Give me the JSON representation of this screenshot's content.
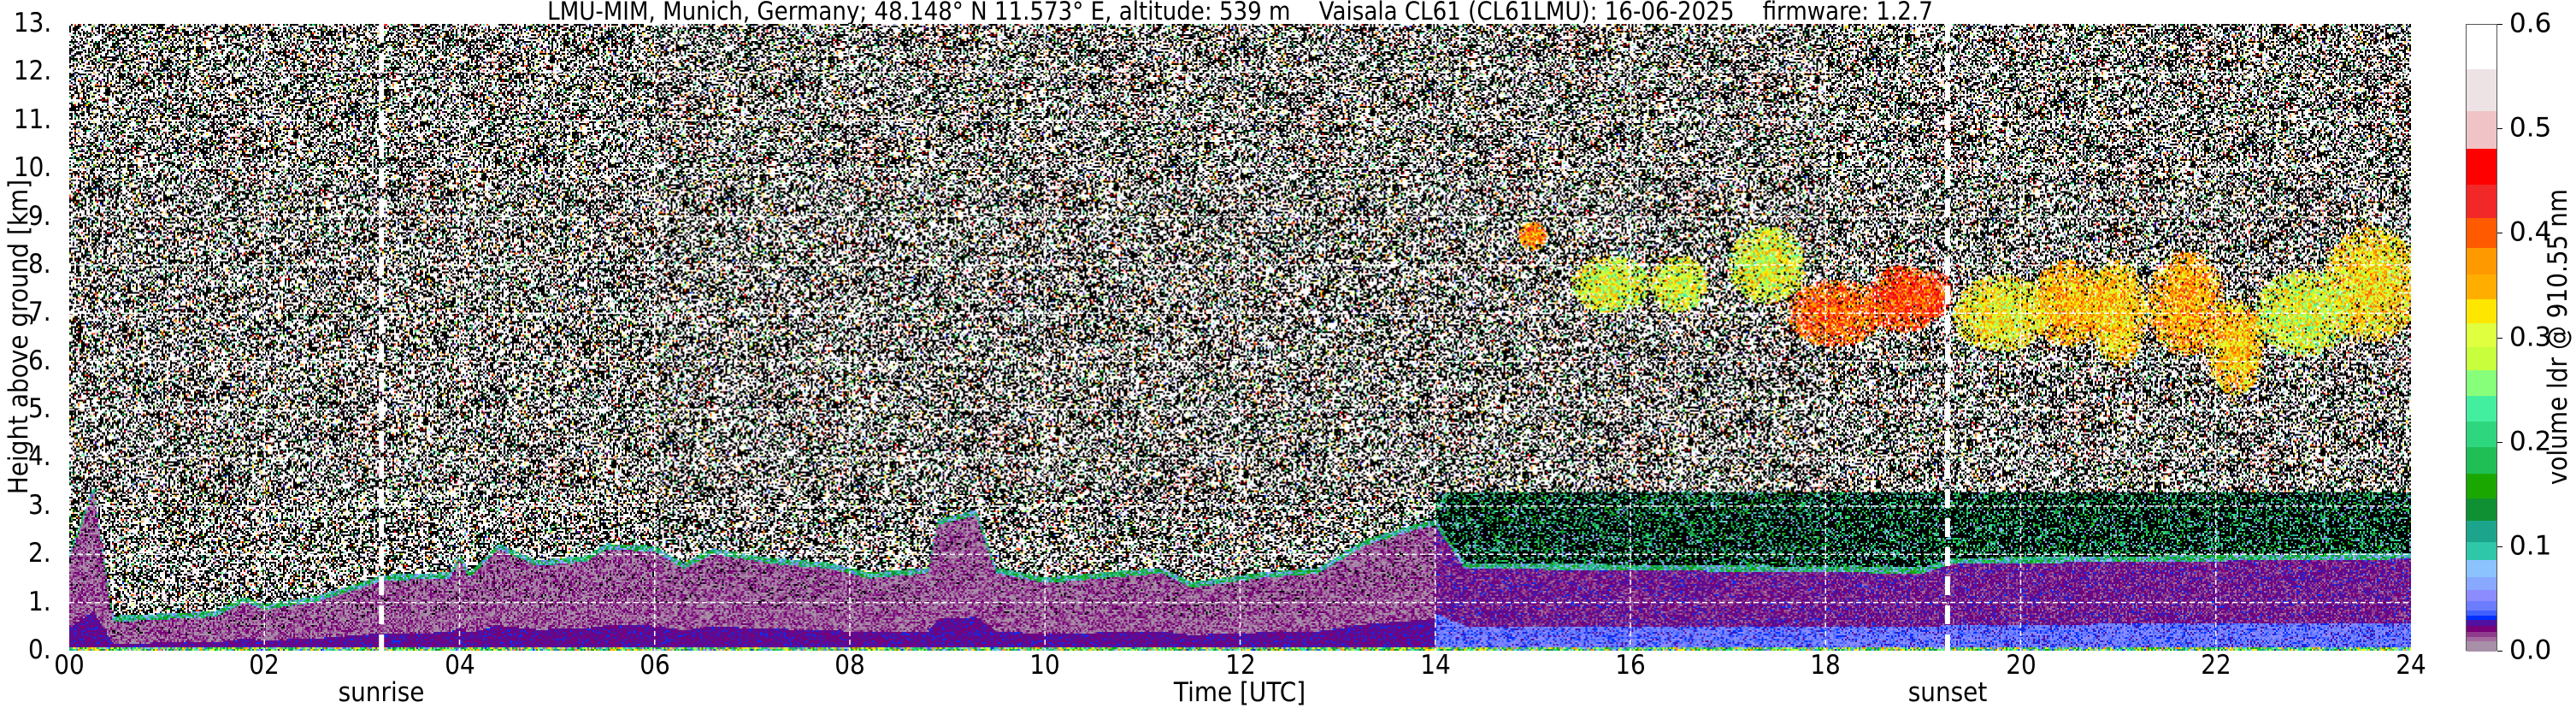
{
  "chart_data": {
    "type": "heatmap",
    "title": "LMU-MIM, Munich, Germany; 48.148° N 11.573° E, altitude: 539 m    Vaisala CL61 (CL61LMU): 16-06-2025    firmware: 1.2.7",
    "xlabel": "Time [UTC]",
    "ylabel": "Height above ground [km]",
    "xlim": [
      0,
      24
    ],
    "ylim": [
      0,
      13
    ],
    "x_ticks": [
      "00",
      "02",
      "04",
      "06",
      "08",
      "10",
      "12",
      "14",
      "16",
      "18",
      "20",
      "22",
      "24"
    ],
    "x_tick_values": [
      0,
      2,
      4,
      6,
      8,
      10,
      12,
      14,
      16,
      18,
      20,
      22,
      24
    ],
    "y_ticks": [
      "0.",
      "1.",
      "2.",
      "3.",
      "4.",
      "5.",
      "6.",
      "7.",
      "8.",
      "9.",
      "10.",
      "11.",
      "12.",
      "13."
    ],
    "y_tick_values": [
      0,
      1,
      2,
      3,
      4,
      5,
      6,
      7,
      8,
      9,
      10,
      11,
      12,
      13
    ],
    "grid": true,
    "annotations": [
      {
        "label": "sunrise",
        "time_h": 3.2
      },
      {
        "label": "sunset",
        "time_h": 19.25
      }
    ],
    "colorbar": {
      "label": "volume ldr @ 910.55 nm",
      "range": [
        0.0,
        0.6
      ],
      "ticks": [
        "0.0",
        "0.1",
        "0.2",
        "0.3",
        "0.4",
        "0.5",
        "0.6"
      ],
      "tick_values": [
        0.0,
        0.1,
        0.2,
        0.3,
        0.4,
        0.5,
        0.6
      ],
      "levels": [
        0,
        0.01,
        0.014,
        0.019,
        0.025,
        0.031,
        0.035,
        0.04,
        0.049,
        0.059,
        0.072,
        0.088,
        0.105,
        0.126,
        0.147,
        0.171,
        0.196,
        0.221,
        0.245,
        0.27,
        0.292,
        0.315,
        0.338,
        0.361,
        0.387,
        0.415,
        0.447,
        0.482,
        0.518,
        0.558,
        0.6
      ],
      "colors": [
        "#a890a8",
        "#a46aa0",
        "#903c8c",
        "#780078",
        "#5010a0",
        "#0030ff",
        "#4060ff",
        "#6c7cff",
        "#8c8cff",
        "#88a9ff",
        "#8bc3ff",
        "#2ec8a8",
        "#1ca58c",
        "#0f9033",
        "#1aa800",
        "#1fbf55",
        "#2ed67d",
        "#44ee9f",
        "#88ff7a",
        "#c8ff3c",
        "#dfff3f",
        "#ffe600",
        "#ffae00",
        "#ff9900",
        "#ff5a00",
        "#f22828",
        "#ff0000",
        "#f0c4c6",
        "#ede3e5",
        "#ffffff"
      ]
    }
  }
}
